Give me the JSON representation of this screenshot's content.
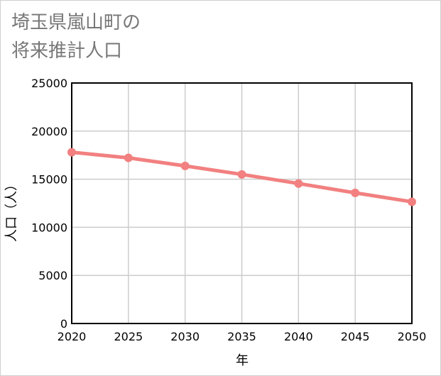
{
  "title_lines": [
    "埼玉県嵐山町の",
    "将来推計人口"
  ],
  "chart_data": {
    "type": "line",
    "xlabel": "年",
    "ylabel": "人口（人）",
    "x": [
      2020,
      2025,
      2030,
      2035,
      2040,
      2045,
      2050
    ],
    "series": [
      {
        "values": [
          17800,
          17220,
          16380,
          15500,
          14550,
          13580,
          12650
        ]
      }
    ],
    "xlim": [
      2020,
      2050
    ],
    "ylim": [
      0,
      25000
    ],
    "yticks": [
      0,
      5000,
      10000,
      15000,
      20000,
      25000
    ],
    "xticks": [
      2020,
      2025,
      2030,
      2035,
      2040,
      2045,
      2050
    ],
    "grid": true,
    "line_color": "#f28080",
    "grid_color": "#cccccc"
  }
}
